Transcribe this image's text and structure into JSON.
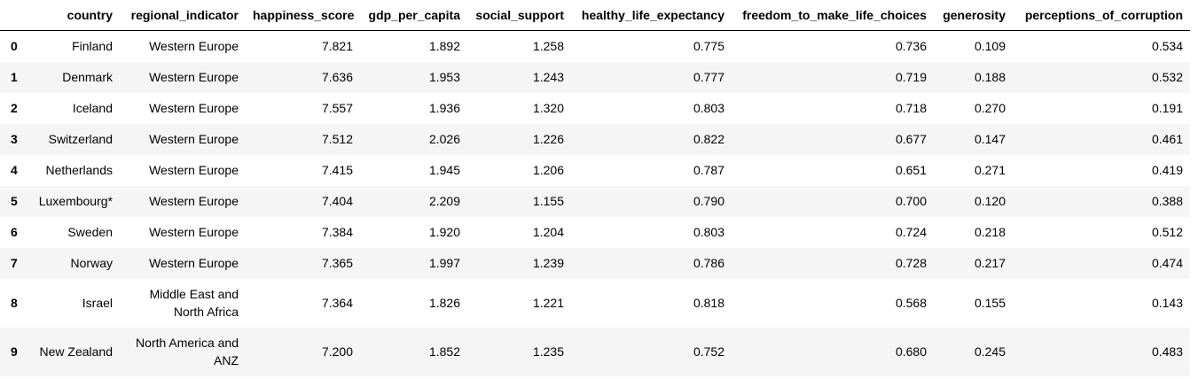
{
  "table": {
    "columns": [
      "country",
      "regional_indicator",
      "happiness_score",
      "gdp_per_capita",
      "social_support",
      "healthy_life_expectancy",
      "freedom_to_make_life_choices",
      "generosity",
      "perceptions_of_corruption"
    ],
    "rows": [
      {
        "index": "0",
        "cells": [
          "Finland",
          "Western Europe",
          "7.821",
          "1.892",
          "1.258",
          "0.775",
          "0.736",
          "0.109",
          "0.534"
        ]
      },
      {
        "index": "1",
        "cells": [
          "Denmark",
          "Western Europe",
          "7.636",
          "1.953",
          "1.243",
          "0.777",
          "0.719",
          "0.188",
          "0.532"
        ]
      },
      {
        "index": "2",
        "cells": [
          "Iceland",
          "Western Europe",
          "7.557",
          "1.936",
          "1.320",
          "0.803",
          "0.718",
          "0.270",
          "0.191"
        ]
      },
      {
        "index": "3",
        "cells": [
          "Switzerland",
          "Western Europe",
          "7.512",
          "2.026",
          "1.226",
          "0.822",
          "0.677",
          "0.147",
          "0.461"
        ]
      },
      {
        "index": "4",
        "cells": [
          "Netherlands",
          "Western Europe",
          "7.415",
          "1.945",
          "1.206",
          "0.787",
          "0.651",
          "0.271",
          "0.419"
        ]
      },
      {
        "index": "5",
        "cells": [
          "Luxembourg*",
          "Western Europe",
          "7.404",
          "2.209",
          "1.155",
          "0.790",
          "0.700",
          "0.120",
          "0.388"
        ]
      },
      {
        "index": "6",
        "cells": [
          "Sweden",
          "Western Europe",
          "7.384",
          "1.920",
          "1.204",
          "0.803",
          "0.724",
          "0.218",
          "0.512"
        ]
      },
      {
        "index": "7",
        "cells": [
          "Norway",
          "Western Europe",
          "7.365",
          "1.997",
          "1.239",
          "0.786",
          "0.728",
          "0.217",
          "0.474"
        ]
      },
      {
        "index": "8",
        "cells": [
          "Israel",
          "Middle East and North Africa",
          "7.364",
          "1.826",
          "1.221",
          "0.818",
          "0.568",
          "0.155",
          "0.143"
        ]
      },
      {
        "index": "9",
        "cells": [
          "New Zealand",
          "North America and ANZ",
          "7.200",
          "1.852",
          "1.235",
          "0.752",
          "0.680",
          "0.245",
          "0.483"
        ]
      }
    ]
  }
}
